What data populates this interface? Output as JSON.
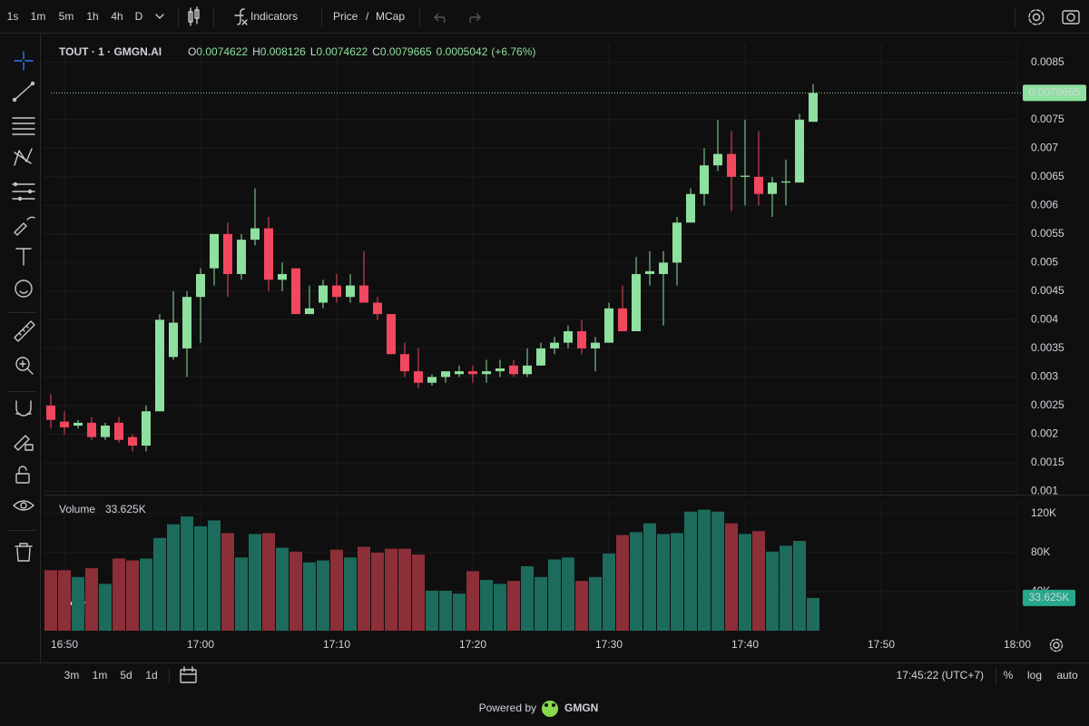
{
  "toolbar": {
    "intervals": [
      "1s",
      "1m",
      "5m",
      "1h",
      "4h",
      "D"
    ],
    "active_interval": 1,
    "indicators": "Indicators",
    "price": "Price",
    "separator": "/",
    "mcap": "MCap"
  },
  "legend": {
    "symbol": "TOUT · 1 · GMGN.AI",
    "keys": [
      "O",
      "H",
      "L",
      "C"
    ],
    "change": 0.0005042,
    "change_pct": "(+6.76%)",
    "volume_title": "Volume"
  },
  "chart_data": {
    "type": "candlestick",
    "open": [
      0.0025,
      0.00222,
      0.00215,
      0.0022,
      0.00195,
      0.0022,
      0.00195,
      0.0018,
      0.0024,
      0.00335,
      0.0035,
      0.0044,
      0.0049,
      0.0055,
      0.0048,
      0.0054,
      0.0056,
      0.0047,
      0.0049,
      0.0041,
      0.0043,
      0.0046,
      0.0044,
      0.0046,
      0.0043,
      0.0041,
      0.0034,
      0.0031,
      0.0029,
      0.003,
      0.00305,
      0.0031,
      0.00305,
      0.0031,
      0.0032,
      0.00305,
      0.0032,
      0.0035,
      0.0036,
      0.0038,
      0.0035,
      0.0036,
      0.0042,
      0.0038,
      0.0048,
      0.0048,
      0.005,
      0.0057,
      0.0062,
      0.0067,
      0.0069,
      0.0065,
      0.0065,
      0.0062,
      0.0064,
      0.0064,
      0.0074622
    ],
    "high": [
      0.0027,
      0.0024,
      0.00225,
      0.0023,
      0.0022,
      0.0023,
      0.002,
      0.0025,
      0.0041,
      0.0045,
      0.0045,
      0.0049,
      0.0055,
      0.0057,
      0.0055,
      0.0063,
      0.0058,
      0.005,
      0.0049,
      0.0046,
      0.0047,
      0.0048,
      0.0048,
      0.0052,
      0.0044,
      0.0041,
      0.0036,
      0.0035,
      0.00305,
      0.0031,
      0.0032,
      0.0032,
      0.0033,
      0.0033,
      0.0033,
      0.0035,
      0.0036,
      0.0037,
      0.0039,
      0.004,
      0.0037,
      0.0043,
      0.0046,
      0.0051,
      0.0052,
      0.0052,
      0.0058,
      0.0063,
      0.007,
      0.0075,
      0.0073,
      0.0075,
      0.0073,
      0.0065,
      0.0068,
      0.0076,
      0.008126
    ],
    "low": [
      0.0021,
      0.002,
      0.0021,
      0.0019,
      0.0019,
      0.00185,
      0.0017,
      0.0017,
      0.0024,
      0.0033,
      0.003,
      0.0036,
      0.0046,
      0.0044,
      0.0047,
      0.0053,
      0.0045,
      0.0045,
      0.0041,
      0.0041,
      0.0042,
      0.0043,
      0.0043,
      0.0043,
      0.004,
      0.0034,
      0.003,
      0.0028,
      0.00285,
      0.0029,
      0.003,
      0.0029,
      0.0029,
      0.003,
      0.003,
      0.003,
      0.0032,
      0.0034,
      0.0035,
      0.0034,
      0.0031,
      0.0036,
      0.0038,
      0.0038,
      0.0046,
      0.0039,
      0.0046,
      0.0057,
      0.006,
      0.0066,
      0.0059,
      0.006,
      0.006,
      0.0058,
      0.006,
      0.0064,
      0.0074622
    ],
    "close": [
      0.00225,
      0.00212,
      0.0022,
      0.00195,
      0.00215,
      0.0019,
      0.0018,
      0.0024,
      0.004,
      0.00395,
      0.0044,
      0.0048,
      0.0055,
      0.0048,
      0.0054,
      0.0056,
      0.0047,
      0.0048,
      0.0041,
      0.0042,
      0.0046,
      0.0044,
      0.0046,
      0.0043,
      0.0041,
      0.0034,
      0.0031,
      0.0029,
      0.003,
      0.0031,
      0.0031,
      0.00305,
      0.0031,
      0.00315,
      0.00305,
      0.0032,
      0.0035,
      0.0036,
      0.0038,
      0.0035,
      0.0036,
      0.0042,
      0.0038,
      0.0048,
      0.00485,
      0.005,
      0.0057,
      0.0062,
      0.0067,
      0.0069,
      0.0065,
      0.00652,
      0.0062,
      0.0064,
      0.00642,
      0.0075,
      0.0079665
    ],
    "volume": {
      "values": [
        62000,
        62000,
        55000,
        64000,
        48000,
        74000,
        72000,
        74000,
        95000,
        109000,
        117000,
        107000,
        113000,
        100000,
        75000,
        99000,
        100000,
        85000,
        81000,
        70000,
        72000,
        83000,
        75000,
        86000,
        80000,
        84000,
        84000,
        78000,
        41000,
        41000,
        38000,
        61000,
        52000,
        48000,
        51000,
        66000,
        55000,
        73000,
        75000,
        51000,
        55000,
        79000,
        98000,
        101000,
        110000,
        99000,
        100000,
        122000,
        124000,
        122000,
        110000,
        99000,
        102000,
        81000,
        87000,
        92000,
        33625
      ],
      "value_labels": [
        null,
        null,
        null,
        null,
        null,
        null,
        null,
        null,
        null,
        null,
        null,
        null,
        null,
        null,
        null,
        null,
        null,
        null,
        null,
        null,
        null,
        null,
        null,
        null,
        null,
        null,
        null,
        null,
        null,
        null,
        null,
        null,
        null,
        null,
        null,
        null,
        null,
        null,
        null,
        null,
        null,
        null,
        null,
        null,
        null,
        null,
        null,
        null,
        null,
        null,
        null,
        null,
        null,
        null,
        null,
        null,
        "33.625K"
      ],
      "ylim": [
        0,
        132000
      ],
      "yticks": [
        {
          "value": 120000,
          "label": "120K"
        },
        {
          "value": 80000,
          "label": "80K"
        },
        {
          "value": 40000,
          "label": "40K"
        }
      ]
    },
    "ylim": [
      0.000944,
      0.00883
    ],
    "yticks": [
      0.0085,
      0.0075,
      0.007,
      0.0065,
      0.006,
      0.0055,
      0.005,
      0.0045,
      0.004,
      0.0035,
      0.003,
      0.0025,
      0.002,
      0.0015,
      0.001
    ],
    "xticks": [
      "16:50",
      "17:00",
      "17:10",
      "17:20",
      "17:30",
      "17:40",
      "17:50",
      "18:00"
    ],
    "grid": true,
    "up_color": "#8ee09e",
    "down_color": "#f2475f",
    "volume_up_color": "#1d6b5c",
    "volume_down_color": "#8c2f38"
  },
  "bottom_bar": {
    "ranges": [
      "3m",
      "1m",
      "5d",
      "1d"
    ],
    "clock": "17:45:22 (UTC+7)",
    "scale_options": [
      "%",
      "log",
      "auto"
    ],
    "active_option": 2
  },
  "footer": {
    "powered_by": "Powered by",
    "brand": "GMGN"
  }
}
